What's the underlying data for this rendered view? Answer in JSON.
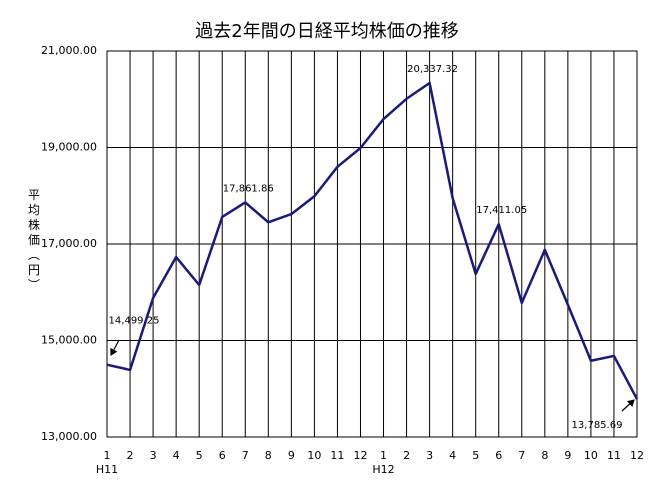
{
  "chart_data": {
    "type": "line",
    "title": "過去2年間の日経平均株価の推移",
    "y_label": "平均株価（円）",
    "categories": [
      "1",
      "2",
      "3",
      "4",
      "5",
      "6",
      "7",
      "8",
      "9",
      "10",
      "11",
      "12",
      "1",
      "2",
      "3",
      "4",
      "5",
      "6",
      "7",
      "8",
      "9",
      "10",
      "11",
      "12"
    ],
    "groups": [
      "H11",
      "H12"
    ],
    "series": [
      {
        "name": "日経平均株価",
        "color": "#1a1a7a",
        "values": [
          14499.25,
          14390,
          15880,
          16730,
          16150,
          17560,
          17861.86,
          17450,
          17620,
          17990,
          18600,
          18990,
          19590,
          20010,
          20337.32,
          17950,
          16380,
          17411.05,
          15780,
          16880,
          15740,
          14580,
          14680,
          13785.69
        ],
        "value_labels": [
          "14,499.25",
          null,
          null,
          null,
          null,
          null,
          "17,861.86",
          null,
          null,
          null,
          null,
          null,
          null,
          null,
          "20,337.32",
          null,
          null,
          "17,411.05",
          null,
          null,
          null,
          null,
          null,
          "13,785.69"
        ]
      }
    ],
    "ylim": [
      13000,
      21000
    ],
    "yticks": [
      {
        "value": 13000,
        "label": "13,000.00"
      },
      {
        "value": 15000,
        "label": "15,000.00"
      },
      {
        "value": 17000,
        "label": "17,000.00"
      },
      {
        "value": 19000,
        "label": "19,000.00"
      },
      {
        "value": 21000,
        "label": "21,000.00"
      }
    ],
    "grid": true
  }
}
